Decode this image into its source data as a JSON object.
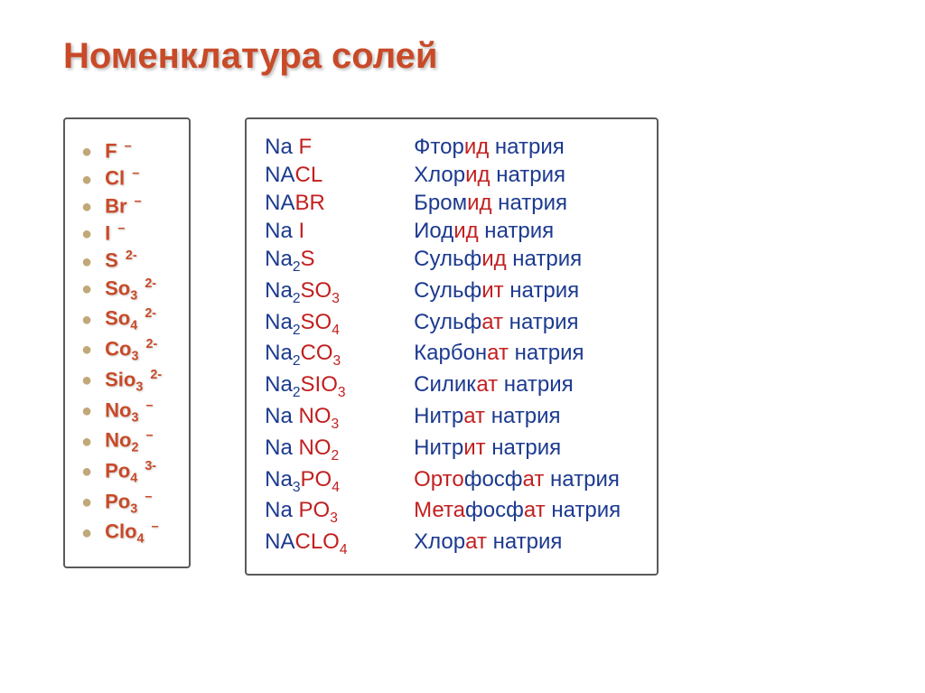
{
  "title": "Номенклатура солей",
  "colors": {
    "title": "#c84a28",
    "ion_text": "#c84a28",
    "bullet": "#c0a878",
    "cation": "#1c3a8f",
    "anion": "#c22020",
    "name_blue": "#1c3a8f",
    "name_red": "#c22020",
    "border": "#5a5a5a",
    "background": "#ffffff"
  },
  "typography": {
    "title_size": 40,
    "ion_size": 22,
    "salt_size": 24,
    "family": "Arial"
  },
  "ions": [
    {
      "sym": "F",
      "sub": "",
      "charge": "–"
    },
    {
      "sym": "Cl",
      "sub": "",
      "charge": "–"
    },
    {
      "sym": "Br",
      "sub": "",
      "charge": "–"
    },
    {
      "sym": "I",
      "sub": "",
      "charge": "–"
    },
    {
      "sym": "S",
      "sub": "",
      "charge": "2-"
    },
    {
      "sym": "SO",
      "sub": "3",
      "charge": "2-"
    },
    {
      "sym": "SO",
      "sub": "4",
      "charge": "2-"
    },
    {
      "sym": "CO",
      "sub": "3",
      "charge": "2-"
    },
    {
      "sym": "SiO",
      "sub": "3",
      "charge": "2-"
    },
    {
      "sym": "NO",
      "sub": "3",
      "charge": "–"
    },
    {
      "sym": "NO",
      "sub": "2",
      "charge": "–"
    },
    {
      "sym": "PO",
      "sub": "4",
      "charge": "3-"
    },
    {
      "sym": "PO",
      "sub": "3",
      "charge": "–"
    },
    {
      "sym": "ClO",
      "sub": "4",
      "charge": "–"
    }
  ],
  "salts": [
    {
      "na": "Na ",
      "na_sub": "",
      "an": "F",
      "an_sub": "",
      "pre": "",
      "mid": "Фтор",
      "suf": "ид",
      "tail": " натрия"
    },
    {
      "na": "NA",
      "na_sub": "",
      "an": "CL",
      "an_sub": "",
      "pre": "",
      "mid": "Хлор",
      "suf": "ид",
      "tail": " натрия"
    },
    {
      "na": "NA",
      "na_sub": "",
      "an": "BR",
      "an_sub": "",
      "pre": "",
      "mid": "Бром",
      "suf": "ид",
      "tail": " натрия"
    },
    {
      "na": "Na ",
      "na_sub": "",
      "an": "I",
      "an_sub": "",
      "pre": "",
      "mid": "Иод",
      "suf": "ид",
      "tail": " натрия"
    },
    {
      "na": "Na",
      "na_sub": "2",
      "an": "S",
      "an_sub": "",
      "pre": "",
      "mid": "Сульф",
      "suf": "ид",
      "tail": " натрия"
    },
    {
      "na": "Na",
      "na_sub": "2",
      "an": "SO",
      "an_sub": "3",
      "pre": "",
      "mid": "Сульф",
      "suf": "ит",
      "tail": " натрия"
    },
    {
      "na": "Na",
      "na_sub": "2",
      "an": "SO",
      "an_sub": "4",
      "pre": "",
      "mid": "Сульф",
      "suf": "ат",
      "tail": " натрия"
    },
    {
      "na": "Na",
      "na_sub": "2",
      "an": "CO",
      "an_sub": "3",
      "pre": "",
      "mid": "Карбон",
      "suf": "ат",
      "tail": " натрия"
    },
    {
      "na": "Na",
      "na_sub": "2",
      "an": "SIO",
      "an_sub": "3",
      "pre": "",
      "mid": "Силик",
      "suf": "ат",
      "tail": " натрия"
    },
    {
      "na": "Na ",
      "na_sub": "",
      "an": "NO",
      "an_sub": "3",
      "pre": "",
      "mid": "Нитр",
      "suf": "ат",
      "tail": " натрия"
    },
    {
      "na": "Na ",
      "na_sub": "",
      "an": "NO",
      "an_sub": "2",
      "pre": "",
      "mid": "Нитр",
      "suf": "ит",
      "tail": " натрия"
    },
    {
      "na": "Na",
      "na_sub": "3",
      "an": "PO",
      "an_sub": "4",
      "pre": "Орто",
      "mid": "фосф",
      "suf": "ат",
      "tail": " натрия"
    },
    {
      "na": "Na ",
      "na_sub": "",
      "an": "PO",
      "an_sub": "3",
      "pre": "Мета",
      "mid": "фосф",
      "suf": "ат",
      "tail": " натрия"
    },
    {
      "na": "NA",
      "na_sub": "",
      "an": "CLO",
      "an_sub": "4",
      "pre": "",
      "mid": "Хлор",
      "suf": "ат",
      "tail": " натрия"
    }
  ]
}
